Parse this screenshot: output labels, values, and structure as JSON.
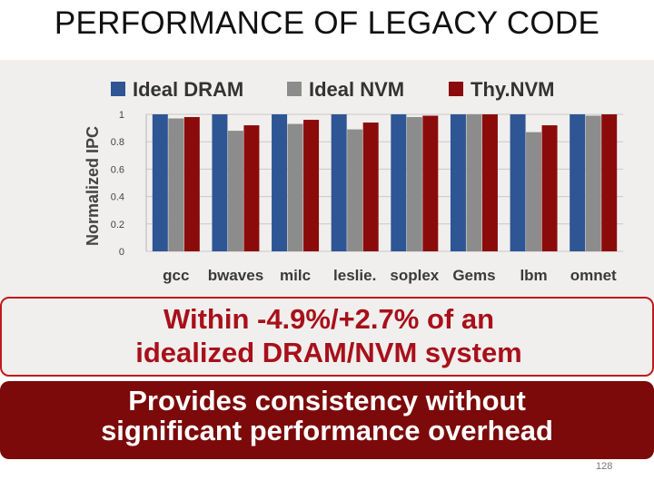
{
  "slide": {
    "title": "PERFORMANCE OF LEGACY CODE",
    "callout_1": [
      "Within -4.9%/+2.7% of an",
      "idealized DRAM/NVM system"
    ],
    "callout_2": [
      "Provides consistency without",
      "significant performance overhead"
    ],
    "page_number": "128"
  },
  "colors": {
    "ideal_dram": "#2e5594",
    "ideal_nvm": "#8c8c8c",
    "thynvm": "#8b0b0b",
    "callout_accent": "#c01a1a"
  },
  "chart_data": {
    "type": "bar",
    "title": "",
    "xlabel": "",
    "ylabel": "Normalized IPC",
    "ylim": [
      0,
      1
    ],
    "yticks": [
      "0",
      "0.2",
      "0.4",
      "0.6",
      "0.8",
      "1"
    ],
    "categories": [
      "gcc",
      "bwaves",
      "milc",
      "leslie.",
      "soplex",
      "Gems",
      "lbm",
      "omnet"
    ],
    "series": [
      {
        "name": "Ideal DRAM",
        "values": [
          1.0,
          1.0,
          1.0,
          1.0,
          1.0,
          1.0,
          1.0,
          1.0
        ]
      },
      {
        "name": "Ideal NVM",
        "values": [
          0.97,
          0.88,
          0.93,
          0.89,
          0.98,
          1.0,
          0.87,
          0.99
        ]
      },
      {
        "name": "Thy.NVM",
        "values": [
          0.98,
          0.92,
          0.96,
          0.94,
          0.99,
          1.0,
          0.92,
          1.0
        ]
      }
    ],
    "legend_position": "top"
  }
}
